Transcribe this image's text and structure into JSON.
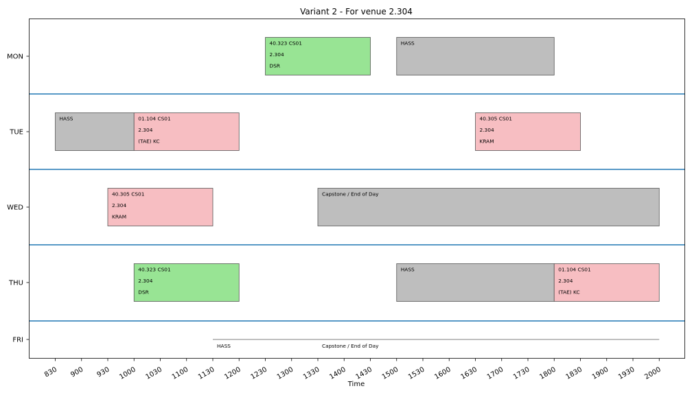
{
  "chart_data": {
    "type": "timetable",
    "title": "Variant 2 - For venue 2.304",
    "xlabel": "Time",
    "ylabel": "",
    "x_ticks": [
      "830",
      "900",
      "930",
      "1000",
      "1030",
      "1100",
      "1130",
      "1200",
      "1230",
      "1300",
      "1330",
      "1400",
      "1430",
      "1500",
      "1530",
      "1600",
      "1630",
      "1700",
      "1730",
      "1800",
      "1830",
      "1900",
      "1930",
      "2000"
    ],
    "days": [
      "MON",
      "TUE",
      "WED",
      "THU",
      "FRI"
    ],
    "colors": {
      "green": "#98e494",
      "red": "#f7bec2",
      "grey": "#bebebe",
      "separator": "#1f77b4"
    },
    "events": [
      {
        "day": "MON",
        "start": "1230",
        "end": "1430",
        "color": "green",
        "lines": [
          "40.323 CS01",
          "2.304",
          "DSR"
        ]
      },
      {
        "day": "MON",
        "start": "1500",
        "end": "1800",
        "color": "grey",
        "lines": [
          "HASS"
        ]
      },
      {
        "day": "TUE",
        "start": "830",
        "end": "1000",
        "color": "grey",
        "lines": [
          "HASS"
        ]
      },
      {
        "day": "TUE",
        "start": "1000",
        "end": "1200",
        "color": "red",
        "lines": [
          "01.104 CS01",
          "2.304",
          "(TAE) KC"
        ]
      },
      {
        "day": "TUE",
        "start": "1630",
        "end": "1830",
        "color": "red",
        "lines": [
          "40.305 CS01",
          "2.304",
          "KRAM"
        ]
      },
      {
        "day": "WED",
        "start": "930",
        "end": "1130",
        "color": "red",
        "lines": [
          "40.305 CS01",
          "2.304",
          "KRAM"
        ]
      },
      {
        "day": "WED",
        "start": "1330",
        "end": "2000",
        "color": "grey",
        "lines": [
          "Capstone / End of Day"
        ]
      },
      {
        "day": "THU",
        "start": "1000",
        "end": "1200",
        "color": "green",
        "lines": [
          "40.323 CS01",
          "2.304",
          "DSR"
        ]
      },
      {
        "day": "THU",
        "start": "1500",
        "end": "1800",
        "color": "grey",
        "lines": [
          "HASS"
        ]
      },
      {
        "day": "THU",
        "start": "1800",
        "end": "2000",
        "color": "red",
        "lines": [
          "01.104 CS01",
          "2.304",
          "(TAE) KC"
        ]
      },
      {
        "day": "FRI",
        "start": "1130",
        "end": "1330",
        "color": "grey",
        "lines": [
          "HASS"
        ]
      },
      {
        "day": "FRI",
        "start": "1330",
        "end": "2000",
        "color": "grey",
        "lines": [
          "Capstone / End of Day"
        ]
      }
    ]
  }
}
